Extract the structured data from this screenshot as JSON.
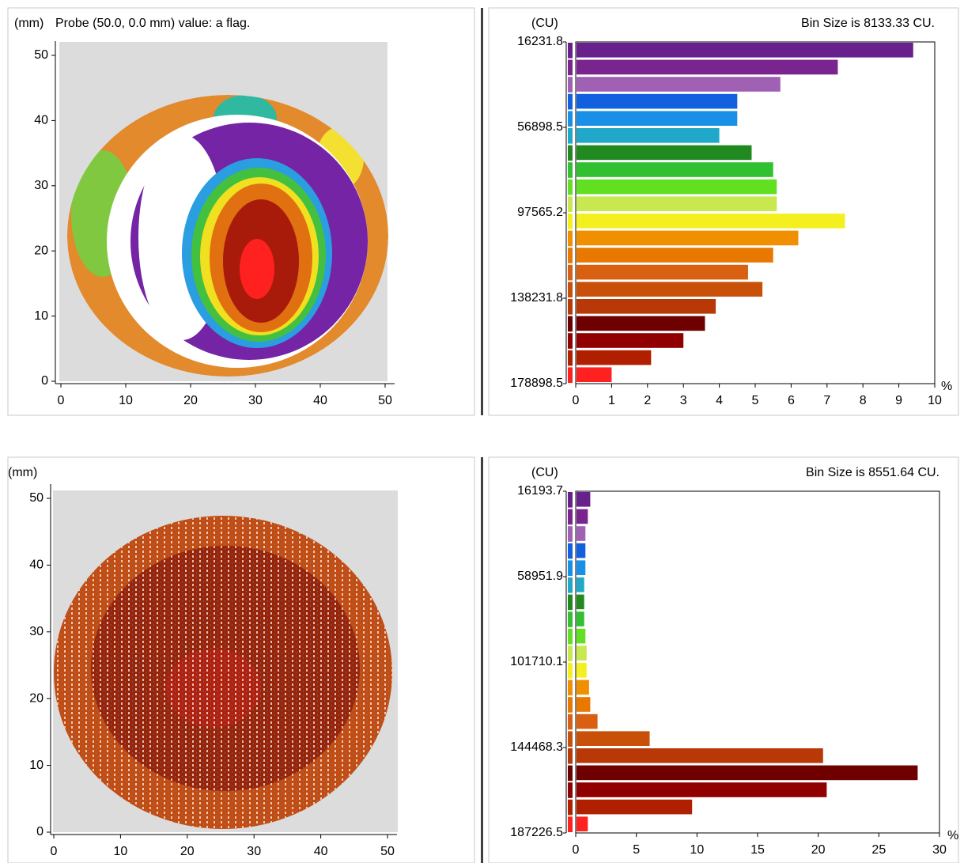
{
  "chart_data": [
    {
      "type": "map",
      "y_label": "(mm)",
      "title": "Probe (50.0, 0.0 mm) value: a flag.",
      "xlim": [
        0,
        50
      ],
      "ylim": [
        0,
        50
      ],
      "xticks": [
        0,
        10,
        20,
        30,
        40,
        50
      ],
      "yticks": [
        0,
        10,
        20,
        30,
        40,
        50
      ]
    },
    {
      "type": "histogram",
      "y_label": "(CU)",
      "title": "Bin Size is 8133.33 CU.",
      "x_label": "%",
      "ylim": [
        16231.8,
        178898.5
      ],
      "yticks": [
        16231.8,
        56898.5,
        97565.2,
        138231.8,
        178898.5
      ],
      "xlim": [
        0,
        10
      ],
      "xticks": [
        0,
        1,
        2,
        3,
        4,
        5,
        6,
        7,
        8,
        9,
        10
      ],
      "values": [
        9.4,
        7.3,
        5.7,
        4.5,
        4.5,
        4.0,
        4.9,
        5.5,
        5.6,
        5.6,
        7.5,
        6.2,
        5.5,
        4.8,
        5.2,
        3.9,
        3.6,
        3.0,
        2.1,
        1.0
      ],
      "colors": [
        "#68208c",
        "#7a2490",
        "#a060b4",
        "#1060e0",
        "#1890e8",
        "#20a8c8",
        "#208a20",
        "#30c030",
        "#60e020",
        "#c8e850",
        "#f4f020",
        "#f09000",
        "#e87800",
        "#d86010",
        "#c85008",
        "#b83808",
        "#6e0000",
        "#900000",
        "#b02000",
        "#ff2020"
      ]
    },
    {
      "type": "map",
      "y_label": "(mm)",
      "xlim": [
        0,
        50
      ],
      "ylim": [
        0,
        50
      ],
      "xticks": [
        0,
        10,
        20,
        30,
        40,
        50
      ],
      "yticks": [
        0,
        10,
        20,
        30,
        40,
        50
      ]
    },
    {
      "type": "histogram",
      "y_label": "(CU)",
      "title": "Bin Size is 8551.64 CU.",
      "x_label": "%",
      "ylim": [
        16193.7,
        187226.5
      ],
      "yticks": [
        16193.7,
        58951.9,
        101710.1,
        144468.3,
        187226.5
      ],
      "xlim": [
        0,
        30
      ],
      "xticks": [
        0,
        5,
        10,
        15,
        20,
        25,
        30
      ],
      "values": [
        1.2,
        1.0,
        0.8,
        0.8,
        0.8,
        0.7,
        0.7,
        0.7,
        0.8,
        0.9,
        0.9,
        1.1,
        1.2,
        1.8,
        6.1,
        20.4,
        28.2,
        20.7,
        9.6,
        1.0
      ],
      "colors": [
        "#68208c",
        "#7a2490",
        "#a060b4",
        "#1060e0",
        "#1890e8",
        "#20a8c8",
        "#208a20",
        "#30c030",
        "#60e020",
        "#c8e850",
        "#f4f020",
        "#f09000",
        "#e87800",
        "#d86010",
        "#c85008",
        "#b83808",
        "#6e0000",
        "#900000",
        "#b02000",
        "#ff2020"
      ]
    }
  ]
}
